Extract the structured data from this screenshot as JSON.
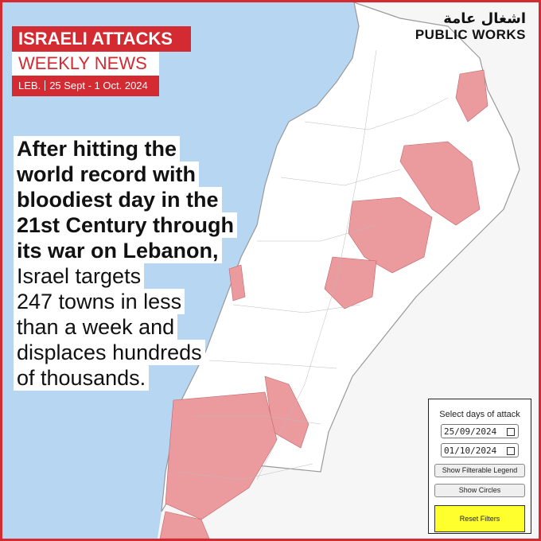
{
  "logo": {
    "arabic": "اشغال عامة",
    "latin": "PUBLIC WORKS"
  },
  "header": {
    "title": "ISRAELI ATTACKS",
    "subtitle": "WEEKLY NEWS",
    "country": "LEB.",
    "dates": "25 Sept - 1 Oct. 2024"
  },
  "headline": {
    "bold_lines": [
      "After hitting the",
      "world record with",
      "bloodiest day in the",
      "21st Century through",
      "its war on Lebanon,"
    ],
    "lines": [
      "Israel targets",
      "247 towns in less",
      "than a week and",
      "displaces hundreds",
      "of thousands."
    ]
  },
  "filter_panel": {
    "label": "Select days of attack",
    "start_date": "25/09/2024",
    "end_date": "01/10/2024",
    "buttons": [
      "Show Filterable Legend",
      "Show Circles",
      "Reset Filters"
    ]
  }
}
